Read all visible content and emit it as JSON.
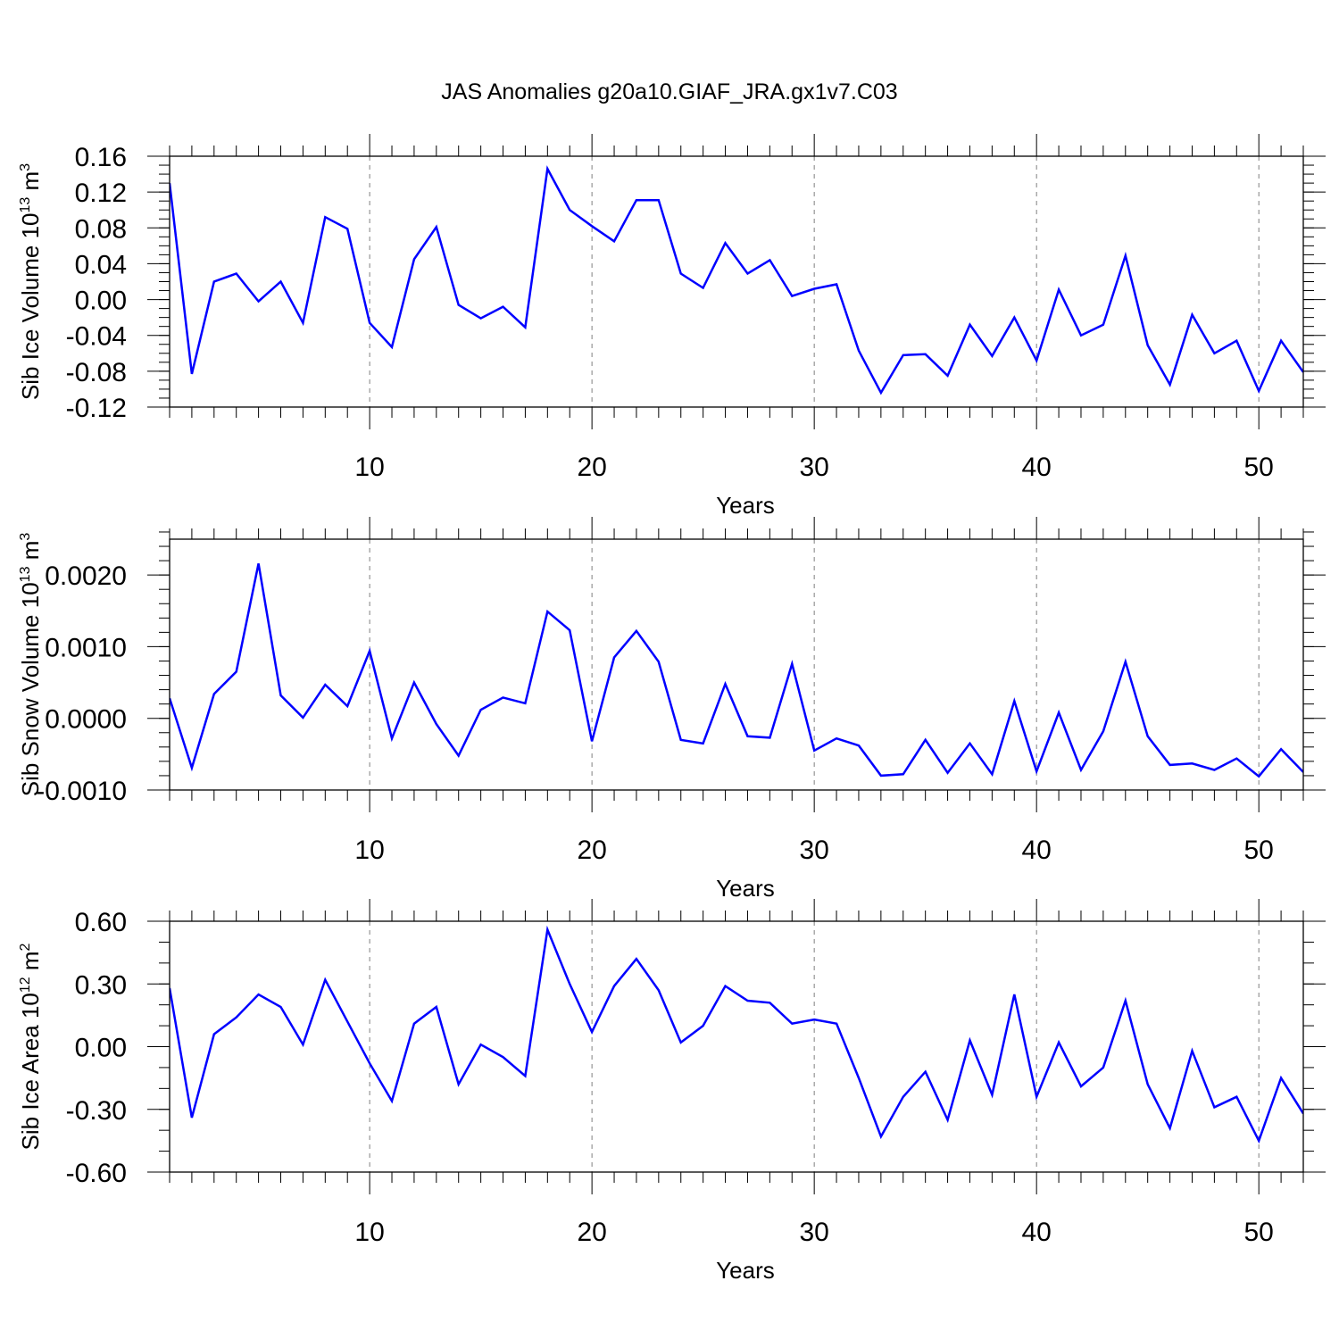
{
  "figure": {
    "title": "JAS Anomalies g20a10.GIAF_JRA.gx1v7.C03"
  },
  "colors": {
    "line": "#0000ff",
    "axes": "#000000",
    "grid": "#808080"
  },
  "chart_data": [
    {
      "type": "line",
      "title": "",
      "xlabel": "Years",
      "ylabel_main": "Sib Ice Volume 10",
      "ylabel_exponent": "13",
      "ylabel_unit": "m",
      "ylabel_unit_exponent": "3",
      "xlim": [
        1,
        52
      ],
      "ylim": [
        -0.12,
        0.16
      ],
      "grid": "vertical dashed at x ticks",
      "x_ticks": [
        10,
        20,
        30,
        40,
        50
      ],
      "x_tick_labels": [
        "10",
        "20",
        "30",
        "40",
        "50"
      ],
      "y_ticks": [
        -0.12,
        -0.08,
        -0.04,
        0.0,
        0.04,
        0.08,
        0.12,
        0.16
      ],
      "y_tick_labels": [
        "-0.12",
        "-0.08",
        "-0.04",
        "0.00",
        "0.04",
        "0.08",
        "0.12",
        "0.16"
      ],
      "y_minor_step": 0.01,
      "x": [
        1,
        2,
        3,
        4,
        5,
        6,
        7,
        8,
        9,
        10,
        11,
        12,
        13,
        14,
        15,
        16,
        17,
        18,
        19,
        20,
        21,
        22,
        23,
        24,
        25,
        26,
        27,
        28,
        29,
        30,
        31,
        32,
        33,
        34,
        35,
        36,
        37,
        38,
        39,
        40,
        41,
        42,
        43,
        44,
        45,
        46,
        47,
        48,
        49,
        50,
        51,
        52
      ],
      "values": [
        0.13,
        -0.083,
        0.02,
        0.029,
        -0.002,
        0.02,
        -0.026,
        0.092,
        0.079,
        -0.026,
        -0.053,
        0.045,
        0.081,
        -0.006,
        -0.021,
        -0.008,
        -0.031,
        0.146,
        0.1,
        0.082,
        0.065,
        0.111,
        0.111,
        0.029,
        0.013,
        0.063,
        0.029,
        0.044,
        0.004,
        0.012,
        0.017,
        -0.057,
        -0.104,
        -0.062,
        -0.061,
        -0.085,
        -0.028,
        -0.063,
        -0.02,
        -0.068,
        0.011,
        -0.04,
        -0.028,
        0.049,
        -0.051,
        -0.095,
        -0.017,
        -0.06,
        -0.046,
        -0.102,
        -0.046,
        -0.081
      ]
    },
    {
      "type": "line",
      "title": "",
      "xlabel": "Years",
      "ylabel_main": "Sib Snow Volume 10",
      "ylabel_exponent": "13",
      "ylabel_unit": "m",
      "ylabel_unit_exponent": "3",
      "xlim": [
        1,
        52
      ],
      "ylim": [
        -0.001,
        0.0025
      ],
      "grid": "vertical dashed at x ticks",
      "x_ticks": [
        10,
        20,
        30,
        40,
        50
      ],
      "x_tick_labels": [
        "10",
        "20",
        "30",
        "40",
        "50"
      ],
      "y_ticks": [
        -0.001,
        0.0,
        0.001,
        0.002
      ],
      "y_tick_labels": [
        "-0.0010",
        "0.0000",
        "0.0010",
        "0.0020"
      ],
      "y_minor_step": 0.0002,
      "x": [
        1,
        2,
        3,
        4,
        5,
        6,
        7,
        8,
        9,
        10,
        11,
        12,
        13,
        14,
        15,
        16,
        17,
        18,
        19,
        20,
        21,
        22,
        23,
        24,
        25,
        26,
        27,
        28,
        29,
        30,
        31,
        32,
        33,
        34,
        35,
        36,
        37,
        38,
        39,
        40,
        41,
        42,
        43,
        44,
        45,
        46,
        47,
        48,
        49,
        50,
        51,
        52
      ],
      "values": [
        0.00028,
        -0.00069,
        0.00034,
        0.00065,
        0.00216,
        0.00032,
        1e-05,
        0.00047,
        0.00017,
        0.00094,
        -0.00028,
        0.0005,
        -8e-05,
        -0.00052,
        0.00012,
        0.00029,
        0.00021,
        0.00149,
        0.00123,
        -0.00032,
        0.00085,
        0.00122,
        0.00079,
        -0.0003,
        -0.00035,
        0.00048,
        -0.00025,
        -0.00027,
        0.00076,
        -0.00045,
        -0.00028,
        -0.00038,
        -0.0008,
        -0.00078,
        -0.0003,
        -0.00076,
        -0.00035,
        -0.00078,
        0.00024,
        -0.00074,
        8e-05,
        -0.00072,
        -0.00018,
        0.00079,
        -0.00025,
        -0.00065,
        -0.00063,
        -0.00072,
        -0.00056,
        -0.00081,
        -0.00043,
        -0.00075
      ]
    },
    {
      "type": "line",
      "title": "",
      "xlabel": "Years",
      "ylabel_main": "Sib Ice Area 10",
      "ylabel_exponent": "12",
      "ylabel_unit": "m",
      "ylabel_unit_exponent": "2",
      "xlim": [
        1,
        52
      ],
      "ylim": [
        -0.6,
        0.6
      ],
      "grid": "vertical dashed at x ticks",
      "x_ticks": [
        10,
        20,
        30,
        40,
        50
      ],
      "x_tick_labels": [
        "10",
        "20",
        "30",
        "40",
        "50"
      ],
      "y_ticks": [
        -0.6,
        -0.3,
        0.0,
        0.3,
        0.6
      ],
      "y_tick_labels": [
        "-0.60",
        "-0.30",
        "0.00",
        "0.30",
        "0.60"
      ],
      "y_minor_step": 0.1,
      "x": [
        1,
        2,
        3,
        4,
        5,
        6,
        7,
        8,
        9,
        10,
        11,
        12,
        13,
        14,
        15,
        16,
        17,
        18,
        19,
        20,
        21,
        22,
        23,
        24,
        25,
        26,
        27,
        28,
        29,
        30,
        31,
        32,
        33,
        34,
        35,
        36,
        37,
        38,
        39,
        40,
        41,
        42,
        43,
        44,
        45,
        46,
        47,
        48,
        49,
        50,
        51,
        52
      ],
      "values": [
        0.28,
        -0.34,
        0.06,
        0.14,
        0.25,
        0.19,
        0.01,
        0.32,
        0.12,
        -0.08,
        -0.26,
        0.11,
        0.19,
        -0.18,
        0.01,
        -0.05,
        -0.14,
        0.56,
        0.3,
        0.07,
        0.29,
        0.42,
        0.27,
        0.02,
        0.1,
        0.29,
        0.22,
        0.21,
        0.11,
        0.13,
        0.11,
        -0.15,
        -0.43,
        -0.24,
        -0.12,
        -0.35,
        0.03,
        -0.23,
        0.25,
        -0.24,
        0.02,
        -0.19,
        -0.1,
        0.22,
        -0.18,
        -0.39,
        -0.02,
        -0.29,
        -0.24,
        -0.45,
        -0.15,
        -0.32
      ]
    }
  ]
}
